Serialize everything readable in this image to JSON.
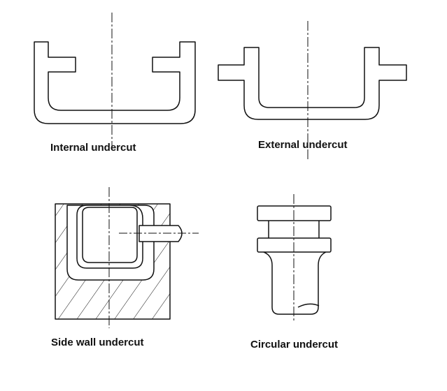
{
  "captions": {
    "internal": "Internal undercut",
    "external": "External undercut",
    "side_wall": "Side wall undercut",
    "circular": "Circular undercut"
  },
  "colors": {
    "line": "#111111",
    "background": "#ffffff"
  }
}
